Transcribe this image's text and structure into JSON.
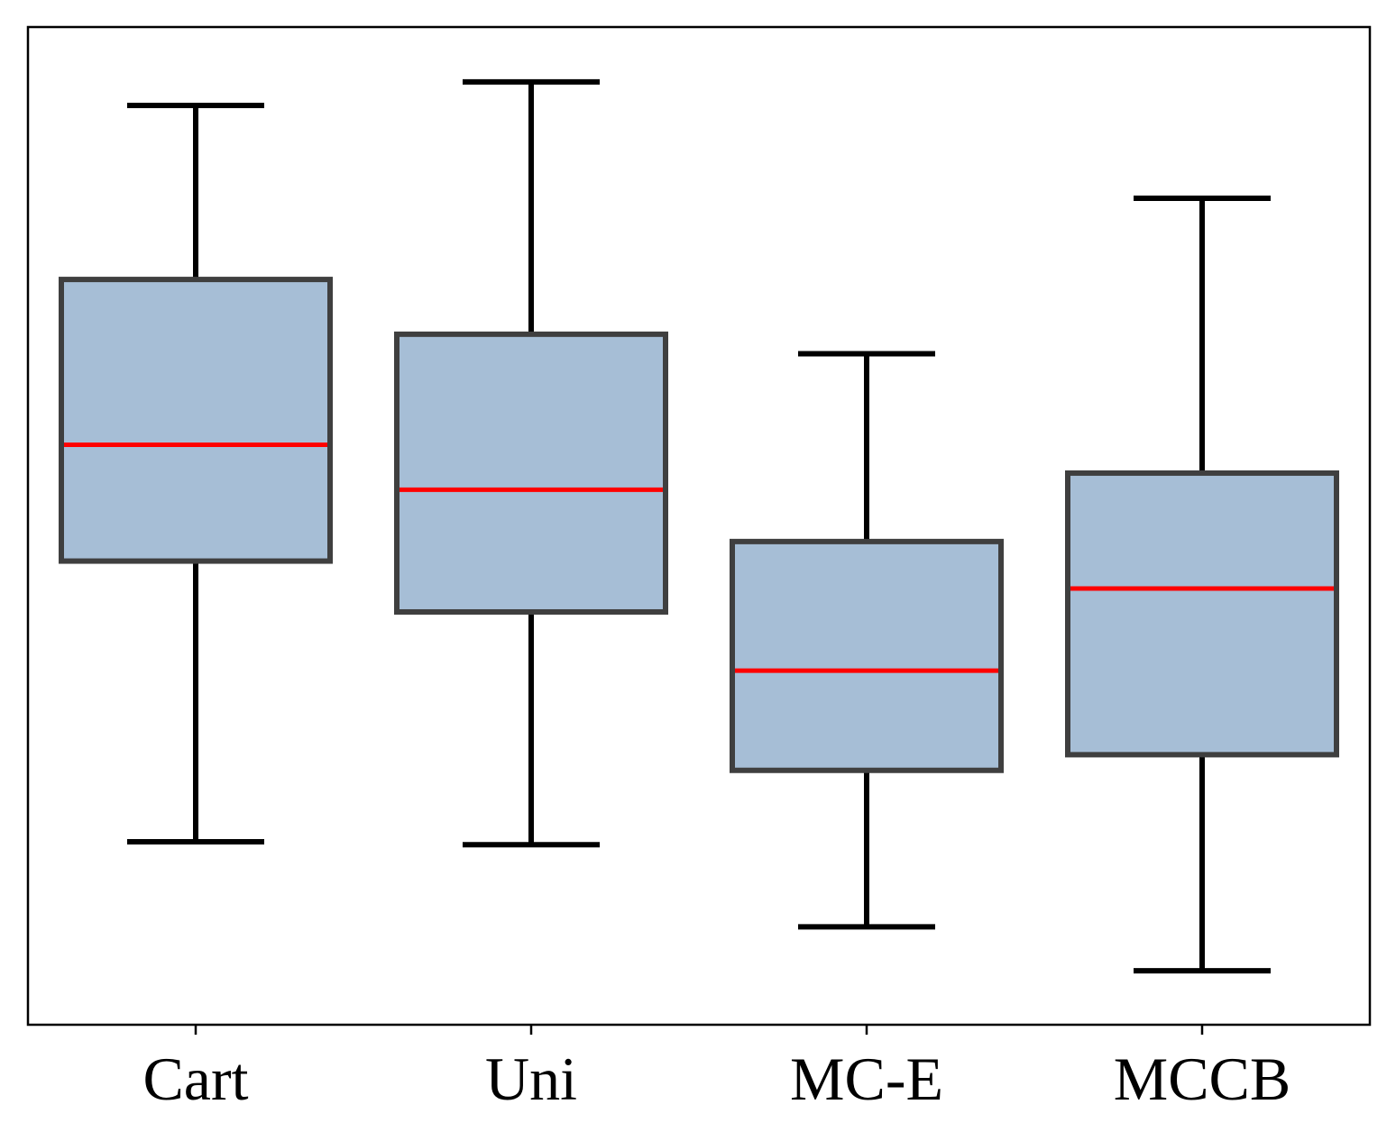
{
  "chart_data": {
    "type": "box",
    "title": "",
    "xlabel": "",
    "ylabel": "",
    "categories": [
      "Cart",
      "Uni",
      "MC-E",
      "MCCB"
    ],
    "y_axis_labeled": false,
    "ylim": [
      0,
      100
    ],
    "boxes": [
      {
        "category": "Cart",
        "whisker_low": 17.7,
        "q1": 46.4,
        "median": 58.3,
        "q3": 75.2,
        "whisker_high": 93.0
      },
      {
        "category": "Uni",
        "whisker_low": 17.4,
        "q1": 41.2,
        "median": 53.7,
        "q3": 69.6,
        "whisker_high": 95.4
      },
      {
        "category": "MC-E",
        "whisker_low": 9.0,
        "q1": 25.0,
        "median": 35.2,
        "q3": 48.4,
        "whisker_high": 67.6
      },
      {
        "category": "MCCB",
        "whisker_low": 4.5,
        "q1": 26.6,
        "median": 43.6,
        "q3": 55.4,
        "whisker_high": 83.5
      }
    ],
    "colors": {
      "box_fill": "#a6bed6",
      "box_edge": "#3f3f3f",
      "median": "#ff0000",
      "whisker": "#000000"
    },
    "grid": false,
    "legend": "none"
  }
}
